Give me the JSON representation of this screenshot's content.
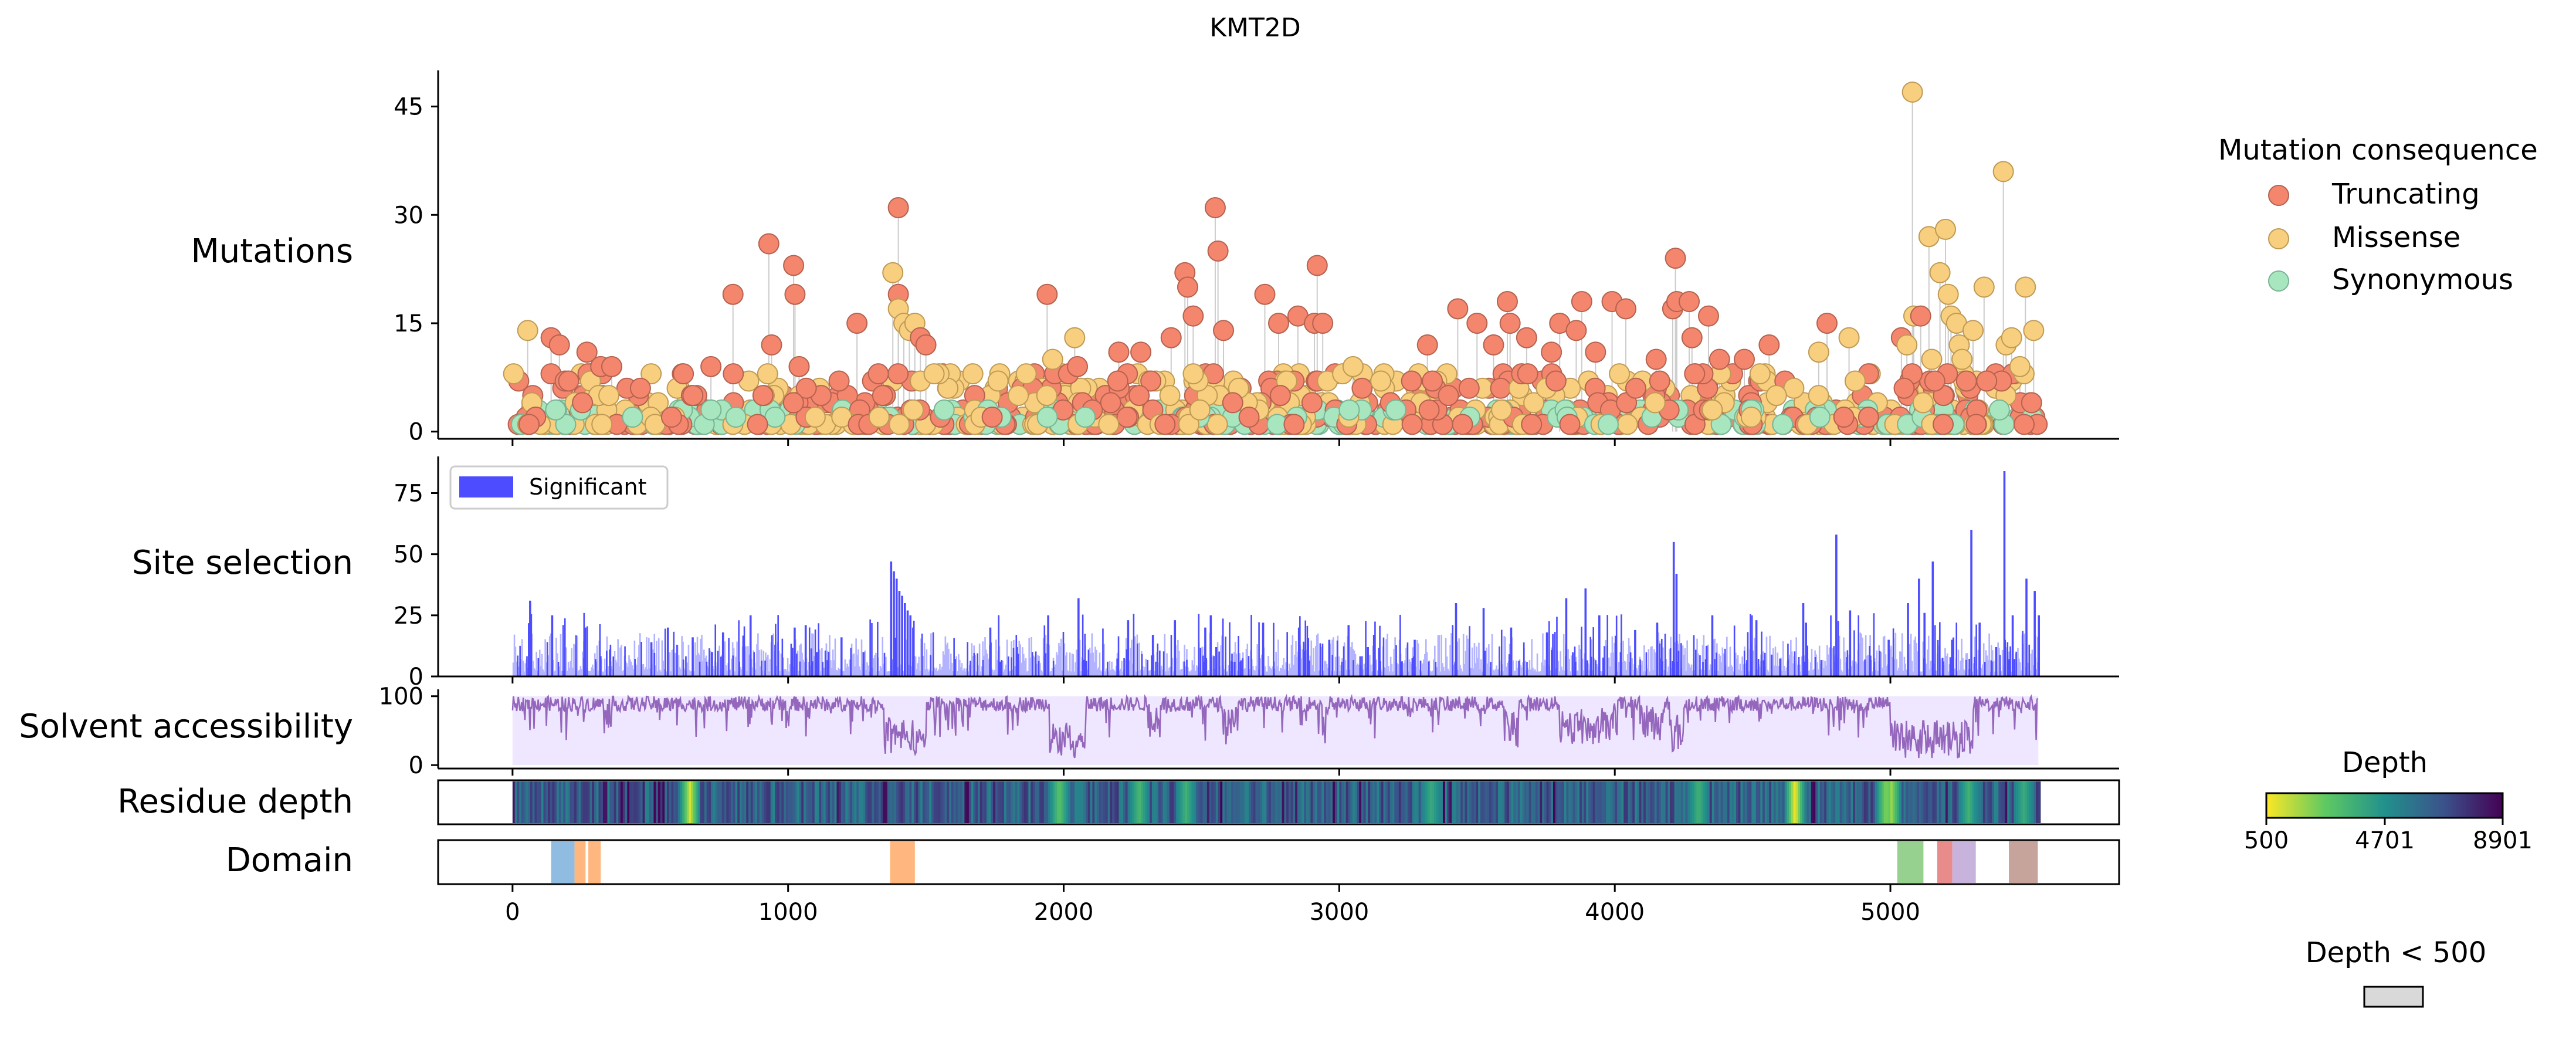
{
  "chart_data": {
    "type": "lollipop-track",
    "title": "KMT2D",
    "x": {
      "range": [
        -270,
        5830
      ],
      "ticks": [
        0,
        1000,
        2000,
        3000,
        4000,
        5000
      ],
      "tick_labels": [
        "0",
        "1000",
        "2000",
        "3000",
        "4000",
        "5000"
      ],
      "protein_length": 5537
    },
    "panels": {
      "mutations": {
        "label": "Mutations",
        "ylim": [
          -1,
          50
        ],
        "yticks": [
          0,
          15,
          30,
          45
        ],
        "ytick_labels": [
          "0",
          "15",
          "30",
          "45"
        ],
        "series": [
          {
            "name": "Truncating",
            "color": "#f4866e"
          },
          {
            "name": "Missense",
            "color": "#f7cf7e"
          },
          {
            "name": "Synonymous",
            "color": "#a8e6c0"
          }
        ],
        "tall_points": [
          {
            "x": 60,
            "y": 1,
            "type": "Truncating"
          },
          {
            "x": 55,
            "y": 14,
            "type": "Missense"
          },
          {
            "x": 140,
            "y": 13,
            "type": "Truncating"
          },
          {
            "x": 170,
            "y": 12,
            "type": "Truncating"
          },
          {
            "x": 270,
            "y": 11,
            "type": "Truncating"
          },
          {
            "x": 320,
            "y": 9,
            "type": "Truncating"
          },
          {
            "x": 360,
            "y": 9,
            "type": "Truncating"
          },
          {
            "x": 620,
            "y": 8,
            "type": "Truncating"
          },
          {
            "x": 720,
            "y": 9,
            "type": "Truncating"
          },
          {
            "x": 800,
            "y": 19,
            "type": "Truncating"
          },
          {
            "x": 930,
            "y": 26,
            "type": "Truncating"
          },
          {
            "x": 940,
            "y": 12,
            "type": "Truncating"
          },
          {
            "x": 1020,
            "y": 23,
            "type": "Truncating"
          },
          {
            "x": 1025,
            "y": 19,
            "type": "Truncating"
          },
          {
            "x": 1040,
            "y": 9,
            "type": "Truncating"
          },
          {
            "x": 1250,
            "y": 15,
            "type": "Truncating"
          },
          {
            "x": 1380,
            "y": 22,
            "type": "Missense"
          },
          {
            "x": 1400,
            "y": 31,
            "type": "Truncating"
          },
          {
            "x": 1400,
            "y": 19,
            "type": "Truncating"
          },
          {
            "x": 1400,
            "y": 17,
            "type": "Missense"
          },
          {
            "x": 1420,
            "y": 15,
            "type": "Missense"
          },
          {
            "x": 1440,
            "y": 14,
            "type": "Missense"
          },
          {
            "x": 1460,
            "y": 15,
            "type": "Missense"
          },
          {
            "x": 1480,
            "y": 13,
            "type": "Truncating"
          },
          {
            "x": 1500,
            "y": 12,
            "type": "Truncating"
          },
          {
            "x": 1940,
            "y": 19,
            "type": "Truncating"
          },
          {
            "x": 1960,
            "y": 10,
            "type": "Missense"
          },
          {
            "x": 2040,
            "y": 13,
            "type": "Missense"
          },
          {
            "x": 2050,
            "y": 9,
            "type": "Truncating"
          },
          {
            "x": 2200,
            "y": 11,
            "type": "Truncating"
          },
          {
            "x": 2280,
            "y": 11,
            "type": "Truncating"
          },
          {
            "x": 2390,
            "y": 13,
            "type": "Truncating"
          },
          {
            "x": 2440,
            "y": 22,
            "type": "Truncating"
          },
          {
            "x": 2450,
            "y": 20,
            "type": "Truncating"
          },
          {
            "x": 2470,
            "y": 16,
            "type": "Truncating"
          },
          {
            "x": 2550,
            "y": 31,
            "type": "Truncating"
          },
          {
            "x": 2560,
            "y": 25,
            "type": "Truncating"
          },
          {
            "x": 2580,
            "y": 14,
            "type": "Truncating"
          },
          {
            "x": 2730,
            "y": 19,
            "type": "Truncating"
          },
          {
            "x": 2780,
            "y": 15,
            "type": "Truncating"
          },
          {
            "x": 2850,
            "y": 16,
            "type": "Truncating"
          },
          {
            "x": 2910,
            "y": 15,
            "type": "Truncating"
          },
          {
            "x": 2920,
            "y": 23,
            "type": "Truncating"
          },
          {
            "x": 2940,
            "y": 15,
            "type": "Truncating"
          },
          {
            "x": 3050,
            "y": 9,
            "type": "Missense"
          },
          {
            "x": 3320,
            "y": 12,
            "type": "Truncating"
          },
          {
            "x": 3430,
            "y": 17,
            "type": "Truncating"
          },
          {
            "x": 3500,
            "y": 15,
            "type": "Truncating"
          },
          {
            "x": 3560,
            "y": 12,
            "type": "Truncating"
          },
          {
            "x": 3610,
            "y": 18,
            "type": "Truncating"
          },
          {
            "x": 3620,
            "y": 15,
            "type": "Truncating"
          },
          {
            "x": 3680,
            "y": 13,
            "type": "Truncating"
          },
          {
            "x": 3770,
            "y": 11,
            "type": "Truncating"
          },
          {
            "x": 3800,
            "y": 15,
            "type": "Truncating"
          },
          {
            "x": 3860,
            "y": 14,
            "type": "Truncating"
          },
          {
            "x": 3880,
            "y": 18,
            "type": "Truncating"
          },
          {
            "x": 3930,
            "y": 11,
            "type": "Truncating"
          },
          {
            "x": 3990,
            "y": 18,
            "type": "Truncating"
          },
          {
            "x": 4040,
            "y": 17,
            "type": "Truncating"
          },
          {
            "x": 4150,
            "y": 10,
            "type": "Truncating"
          },
          {
            "x": 4210,
            "y": 17,
            "type": "Truncating"
          },
          {
            "x": 4220,
            "y": 24,
            "type": "Truncating"
          },
          {
            "x": 4225,
            "y": 18,
            "type": "Truncating"
          },
          {
            "x": 4270,
            "y": 18,
            "type": "Truncating"
          },
          {
            "x": 4280,
            "y": 13,
            "type": "Truncating"
          },
          {
            "x": 4340,
            "y": 16,
            "type": "Truncating"
          },
          {
            "x": 4380,
            "y": 10,
            "type": "Truncating"
          },
          {
            "x": 4470,
            "y": 10,
            "type": "Truncating"
          },
          {
            "x": 4560,
            "y": 12,
            "type": "Truncating"
          },
          {
            "x": 4770,
            "y": 15,
            "type": "Truncating"
          },
          {
            "x": 4740,
            "y": 11,
            "type": "Missense"
          },
          {
            "x": 4850,
            "y": 13,
            "type": "Missense"
          },
          {
            "x": 5040,
            "y": 13,
            "type": "Truncating"
          },
          {
            "x": 5060,
            "y": 12,
            "type": "Missense"
          },
          {
            "x": 5080,
            "y": 47,
            "type": "Missense"
          },
          {
            "x": 5085,
            "y": 16,
            "type": "Missense"
          },
          {
            "x": 5110,
            "y": 16,
            "type": "Truncating"
          },
          {
            "x": 5140,
            "y": 27,
            "type": "Missense"
          },
          {
            "x": 5150,
            "y": 10,
            "type": "Missense"
          },
          {
            "x": 5180,
            "y": 22,
            "type": "Missense"
          },
          {
            "x": 5200,
            "y": 28,
            "type": "Missense"
          },
          {
            "x": 5210,
            "y": 19,
            "type": "Missense"
          },
          {
            "x": 5220,
            "y": 16,
            "type": "Missense"
          },
          {
            "x": 5240,
            "y": 15,
            "type": "Missense"
          },
          {
            "x": 5250,
            "y": 12,
            "type": "Missense"
          },
          {
            "x": 5260,
            "y": 10,
            "type": "Missense"
          },
          {
            "x": 5300,
            "y": 14,
            "type": "Missense"
          },
          {
            "x": 5340,
            "y": 20,
            "type": "Missense"
          },
          {
            "x": 5410,
            "y": 36,
            "type": "Missense"
          },
          {
            "x": 5420,
            "y": 12,
            "type": "Missense"
          },
          {
            "x": 5440,
            "y": 13,
            "type": "Missense"
          },
          {
            "x": 5490,
            "y": 20,
            "type": "Missense"
          },
          {
            "x": 5520,
            "y": 14,
            "type": "Missense"
          },
          {
            "x": 5470,
            "y": 9,
            "type": "Missense"
          }
        ],
        "background_points": {
          "description": "dense cluster of low counts (1–8) along the full length",
          "y_range": [
            1,
            8
          ]
        }
      },
      "site_selection": {
        "label": "Site selection",
        "ylim": [
          0,
          90
        ],
        "yticks": [
          0,
          25,
          50,
          75
        ],
        "ytick_labels": [
          "0",
          "25",
          "50",
          "75"
        ],
        "legend": "Significant",
        "significant_color": "#4d4dff",
        "nonsignificant_color": "#b3b3ff",
        "peaks": [
          [
            60,
            31
          ],
          [
            140,
            25
          ],
          [
            260,
            20
          ],
          [
            350,
            11
          ],
          [
            500,
            14
          ],
          [
            560,
            20
          ],
          [
            650,
            16
          ],
          [
            720,
            10
          ],
          [
            760,
            18
          ],
          [
            860,
            25
          ],
          [
            950,
            13
          ],
          [
            1020,
            20
          ],
          [
            1060,
            21
          ],
          [
            1100,
            10
          ],
          [
            1190,
            16
          ],
          [
            1270,
            10
          ],
          [
            1370,
            47
          ],
          [
            1380,
            43
          ],
          [
            1390,
            40
          ],
          [
            1400,
            35
          ],
          [
            1410,
            33
          ],
          [
            1420,
            30
          ],
          [
            1430,
            27
          ],
          [
            1440,
            25
          ],
          [
            1450,
            20
          ],
          [
            1730,
            20
          ],
          [
            1940,
            25
          ],
          [
            2050,
            32
          ],
          [
            2230,
            23
          ],
          [
            2320,
            17
          ],
          [
            2400,
            23
          ],
          [
            2510,
            20
          ],
          [
            2530,
            25
          ],
          [
            2550,
            12
          ],
          [
            2720,
            22
          ],
          [
            2850,
            20
          ],
          [
            2960,
            15
          ],
          [
            3030,
            21
          ],
          [
            3100,
            12
          ],
          [
            3270,
            15
          ],
          [
            3420,
            30
          ],
          [
            3520,
            28
          ],
          [
            3620,
            20
          ],
          [
            3750,
            18
          ],
          [
            3820,
            32
          ],
          [
            3890,
            36
          ],
          [
            3940,
            25
          ],
          [
            4070,
            19
          ],
          [
            4150,
            22
          ],
          [
            4210,
            55
          ],
          [
            4220,
            42
          ],
          [
            4350,
            25
          ],
          [
            4510,
            23
          ],
          [
            4680,
            30
          ],
          [
            4690,
            22
          ],
          [
            4800,
            58
          ],
          [
            4850,
            27
          ],
          [
            4990,
            15
          ],
          [
            5060,
            30
          ],
          [
            5100,
            40
          ],
          [
            5120,
            26
          ],
          [
            5150,
            47
          ],
          [
            5220,
            15
          ],
          [
            5290,
            60
          ],
          [
            5320,
            22
          ],
          [
            5380,
            12
          ],
          [
            5410,
            84
          ],
          [
            5440,
            25
          ],
          [
            5490,
            40
          ],
          [
            5520,
            35
          ],
          [
            5535,
            25
          ]
        ]
      },
      "solvent_accessibility": {
        "label": "Solvent accessibility",
        "ylim": [
          -5,
          110
        ],
        "yticks": [
          0,
          100
        ],
        "ytick_labels": [
          "0",
          "100"
        ],
        "color": "#9467bd",
        "fill": "#efe6ff",
        "dips": [
          [
            1350,
            1500,
            15
          ],
          [
            1950,
            2080,
            10
          ],
          [
            2300,
            2350,
            40
          ],
          [
            2580,
            2620,
            30
          ],
          [
            2940,
            2960,
            30
          ],
          [
            3600,
            3650,
            25
          ],
          [
            3800,
            3990,
            30
          ],
          [
            4100,
            4180,
            35
          ],
          [
            4200,
            4250,
            20
          ],
          [
            5000,
            5300,
            10
          ]
        ]
      },
      "residue_depth": {
        "label": "Residue depth",
        "colorbar_title": "Depth",
        "colorbar_ticks": [
          "500",
          "4701",
          "8901"
        ],
        "depth_range": [
          500,
          8901
        ],
        "bright_positions": [
          [
            640,
            0.9
          ],
          [
            1980,
            0.55
          ],
          [
            2270,
            0.45
          ],
          [
            2440,
            0.4
          ],
          [
            3330,
            0.35
          ],
          [
            4300,
            0.4
          ],
          [
            4650,
            1.0
          ],
          [
            4980,
            0.7
          ],
          [
            5000,
            0.75
          ],
          [
            5280,
            0.4
          ],
          [
            5480,
            0.35
          ]
        ]
      },
      "domain": {
        "label": "Domain",
        "domains": [
          {
            "start": 140,
            "end": 225,
            "color": "#8fbce0"
          },
          {
            "start": 225,
            "end": 265,
            "color": "#ffb77f"
          },
          {
            "start": 275,
            "end": 320,
            "color": "#ffb77f"
          },
          {
            "start": 1370,
            "end": 1460,
            "color": "#ffb77f"
          },
          {
            "start": 5025,
            "end": 5120,
            "color": "#97d18f"
          },
          {
            "start": 5170,
            "end": 5225,
            "color": "#e88b8b"
          },
          {
            "start": 5225,
            "end": 5310,
            "color": "#c8b3dd"
          },
          {
            "start": 5430,
            "end": 5535,
            "color": "#c6a49c"
          }
        ]
      }
    },
    "legend": {
      "title": "Mutation consequence",
      "items": [
        "Truncating",
        "Missense",
        "Synonymous"
      ]
    },
    "low_depth_legend": "Depth < 500"
  }
}
